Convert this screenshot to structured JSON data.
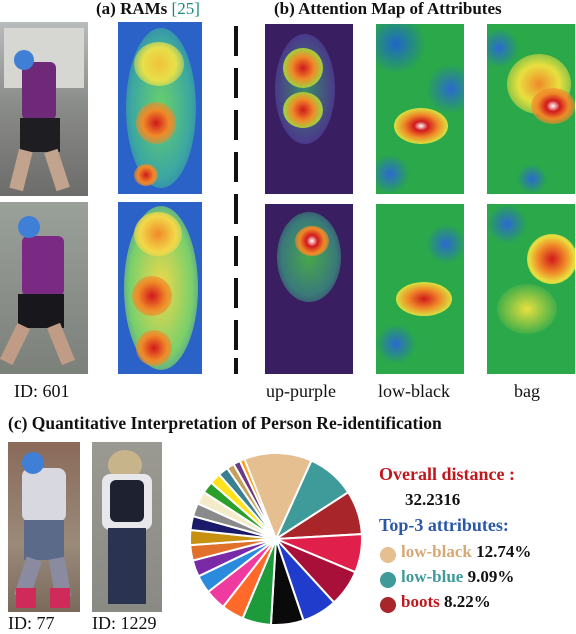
{
  "captions": {
    "a_prefix": "(a) RAMs ",
    "a_ref": "[25]",
    "b": "(b) Attention Map of Attributes",
    "c": "(c) Quantitative Interpretation of Person Re-identification"
  },
  "ids": {
    "top": "ID: 601",
    "c_left": "ID: 77",
    "c_right": "ID: 1229"
  },
  "attributes": [
    "up-purple",
    "low-black",
    "bag"
  ],
  "summary": {
    "overall_label": "Overall distance :",
    "overall_value": "32.2316",
    "top3_label": "Top-3 attributes:",
    "top3": [
      {
        "name": "low-black",
        "value": "12.74%",
        "color": "#e6bf90"
      },
      {
        "name": "low-blue",
        "value": "9.09%",
        "color": "#3f9a9a"
      },
      {
        "name": "boots",
        "value": "8.22%",
        "color": "#a8252a"
      }
    ]
  },
  "colors": {
    "red_text": "#c0171c",
    "blue_text": "#2a58a6",
    "teal_text": "#3f9a9a",
    "tan_text": "#d6a873",
    "marker_blue": "#3f7fd6"
  },
  "chart_data": {
    "type": "pie",
    "values": [
      12.74,
      9.09,
      8.22,
      7.2,
      6.9,
      6.6,
      6.1,
      5.4,
      4.2,
      3.9,
      3.4,
      3.1,
      2.9,
      2.8,
      2.6,
      2.5,
      2.4,
      2.2,
      2.1,
      1.9,
      1.4,
      1.3,
      0.9
    ],
    "colors": [
      "#e6bf90",
      "#3f9a9a",
      "#a8252a",
      "#e0204a",
      "#a8103a",
      "#1f3ccc",
      "#0a0a0a",
      "#1d9a3a",
      "#ff6a2a",
      "#ef3aa0",
      "#2a8adc",
      "#7a2aa6",
      "#e0702a",
      "#c89010",
      "#1a1a6a",
      "#8a8a8a",
      "#f4ecc8",
      "#2aa02a",
      "#ffe21a",
      "#3a8090",
      "#c6a05a",
      "#6a3a8a",
      "#ffa21a"
    ]
  }
}
